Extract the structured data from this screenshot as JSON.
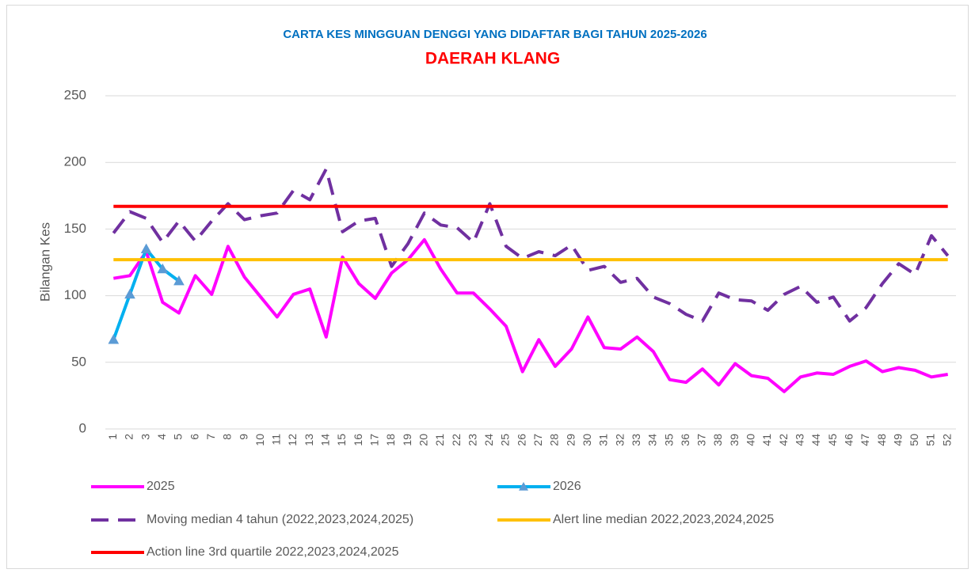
{
  "chart_data": {
    "type": "line",
    "title": "CARTA KES MINGGUAN DENGGI YANG DIDAFTAR BAGI TAHUN 2025-2026",
    "subtitle": "DAERAH KLANG",
    "y_label": "Bilangan Kes",
    "categories": [
      1,
      2,
      3,
      4,
      5,
      6,
      7,
      8,
      9,
      10,
      11,
      12,
      13,
      14,
      15,
      16,
      17,
      18,
      19,
      20,
      21,
      22,
      23,
      24,
      25,
      26,
      27,
      28,
      29,
      30,
      31,
      32,
      33,
      34,
      35,
      36,
      37,
      38,
      39,
      40,
      41,
      42,
      43,
      44,
      45,
      46,
      47,
      48,
      49,
      50,
      51,
      52
    ],
    "ylim": [
      0,
      250
    ],
    "yticks": [
      0,
      50,
      100,
      150,
      200,
      250
    ],
    "grid": true,
    "series": [
      {
        "name": "2025",
        "color": "#ff00ff",
        "values": [
          113,
          115,
          133,
          95,
          87,
          115,
          101,
          137,
          114,
          99,
          84,
          101,
          105,
          69,
          129,
          109,
          98,
          117,
          127,
          142,
          120,
          102,
          102,
          90,
          77,
          43,
          67,
          47,
          60,
          84,
          61,
          60,
          69,
          58,
          37,
          35,
          45,
          33,
          49,
          40,
          38,
          28,
          39,
          42,
          41,
          47,
          51,
          43,
          46,
          44,
          39,
          41
        ]
      },
      {
        "name": "2026",
        "color": "#00b0f0",
        "marker": "triangle",
        "marker_color": "#5b9bd5",
        "values": [
          67,
          101,
          135,
          120,
          111,
          null,
          null,
          null,
          null,
          null,
          null,
          null,
          null,
          null,
          null,
          null,
          null,
          null,
          null,
          null,
          null,
          null,
          null,
          null,
          null,
          null,
          null,
          null,
          null,
          null,
          null,
          null,
          null,
          null,
          null,
          null,
          null,
          null,
          null,
          null,
          null,
          null,
          null,
          null,
          null,
          null,
          null,
          null,
          null,
          null,
          null,
          null
        ]
      },
      {
        "name": "Moving median 4 tahun (2022,2023,2024,2025)",
        "color": "#7030a0",
        "dash": true,
        "values": [
          147,
          163,
          158,
          140,
          156,
          141,
          156,
          169,
          157,
          160,
          162,
          179,
          172,
          195,
          148,
          156,
          158,
          122,
          139,
          162,
          153,
          151,
          140,
          169,
          137,
          128,
          133,
          130,
          138,
          119,
          122,
          110,
          113,
          99,
          94,
          86,
          81,
          102,
          97,
          96,
          89,
          101,
          107,
          95,
          99,
          81,
          91,
          109,
          124,
          116,
          145,
          130
        ]
      },
      {
        "name": "Alert line median 2022,2023,2024,2025",
        "color": "#ffc000",
        "values": [
          127,
          127,
          127,
          127,
          127,
          127,
          127,
          127,
          127,
          127,
          127,
          127,
          127,
          127,
          127,
          127,
          127,
          127,
          127,
          127,
          127,
          127,
          127,
          127,
          127,
          127,
          127,
          127,
          127,
          127,
          127,
          127,
          127,
          127,
          127,
          127,
          127,
          127,
          127,
          127,
          127,
          127,
          127,
          127,
          127,
          127,
          127,
          127,
          127,
          127,
          127,
          127
        ]
      },
      {
        "name": "Action line 3rd quartile 2022,2023,2024,2025",
        "color": "#ff0000",
        "values": [
          167,
          167,
          167,
          167,
          167,
          167,
          167,
          167,
          167,
          167,
          167,
          167,
          167,
          167,
          167,
          167,
          167,
          167,
          167,
          167,
          167,
          167,
          167,
          167,
          167,
          167,
          167,
          167,
          167,
          167,
          167,
          167,
          167,
          167,
          167,
          167,
          167,
          167,
          167,
          167,
          167,
          167,
          167,
          167,
          167,
          167,
          167,
          167,
          167,
          167,
          167,
          167
        ]
      }
    ]
  }
}
